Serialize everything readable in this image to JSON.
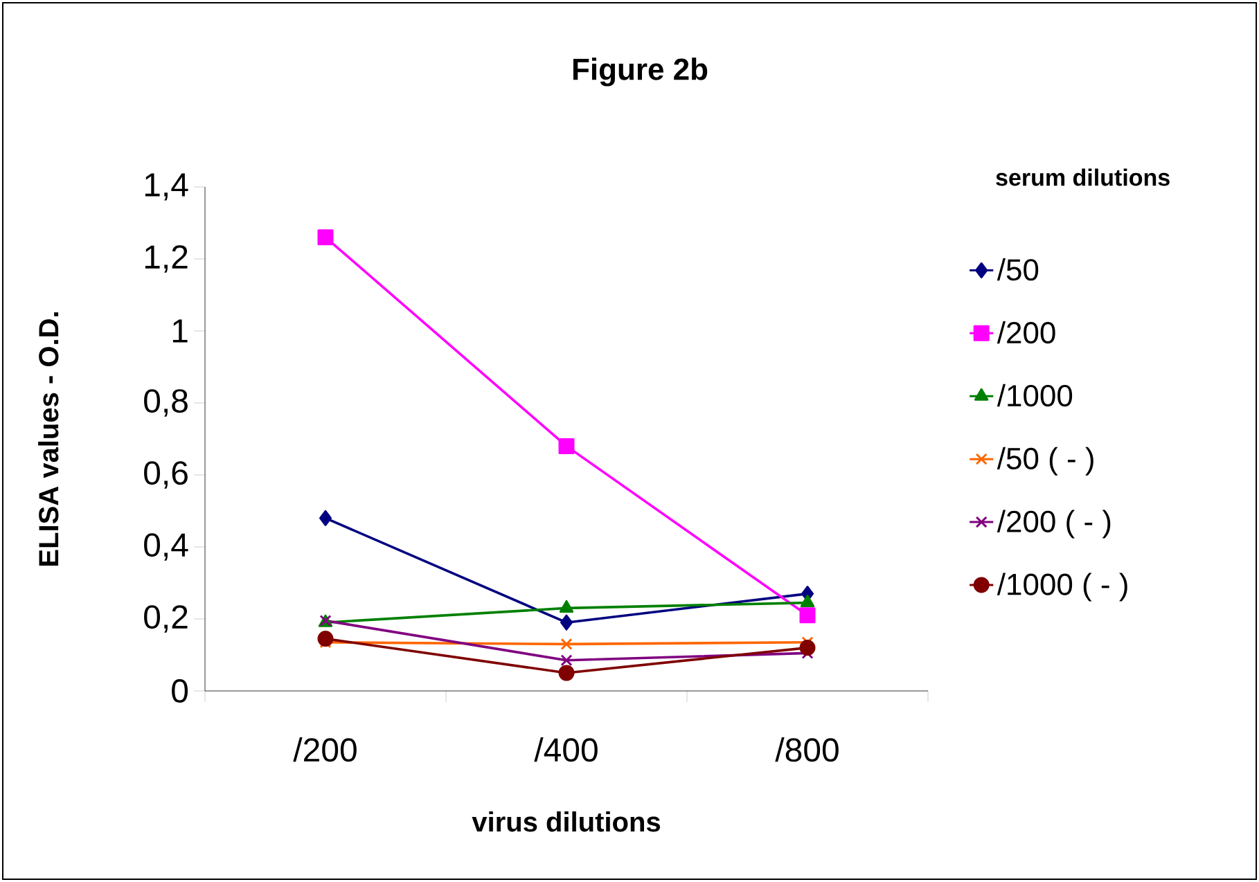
{
  "chart_data": {
    "type": "line",
    "title": "Figure 2b",
    "xlabel": "virus dilutions",
    "ylabel": "ELISA values - O.D.",
    "legend_title": "serum dilutions",
    "categories": [
      "/200",
      "/400",
      "/800"
    ],
    "series": [
      {
        "name": "/50",
        "color": "#000080",
        "marker": "diamond",
        "values": [
          0.48,
          0.19,
          0.27
        ]
      },
      {
        "name": "/200",
        "color": "#ff00ff",
        "marker": "square",
        "values": [
          1.26,
          0.68,
          0.21
        ]
      },
      {
        "name": "/1000",
        "color": "#008000",
        "marker": "triangle",
        "values": [
          0.19,
          0.23,
          0.245
        ]
      },
      {
        "name": "/50 ( - )",
        "color": "#ff6600",
        "marker": "cross",
        "values": [
          0.135,
          0.13,
          0.135
        ]
      },
      {
        "name": "/200 ( - )",
        "color": "#800080",
        "marker": "cross",
        "values": [
          0.195,
          0.085,
          0.105
        ]
      },
      {
        "name": "/1000 ( - )",
        "color": "#800000",
        "marker": "circle",
        "values": [
          0.145,
          0.05,
          0.12
        ]
      }
    ],
    "ylim": [
      0,
      1.4
    ],
    "yticks": [
      0,
      {
        "value": 0.2,
        "label": "0,2"
      },
      {
        "value": 0.4,
        "label": "0,4"
      },
      {
        "value": 0.6,
        "label": "0,6"
      },
      {
        "value": 0.8,
        "label": "0,8"
      },
      1,
      {
        "value": 1.2,
        "label": "1,2"
      },
      {
        "value": 1.4,
        "label": "1,4"
      }
    ],
    "grid": false,
    "legend": "right",
    "line_style": "solid"
  }
}
